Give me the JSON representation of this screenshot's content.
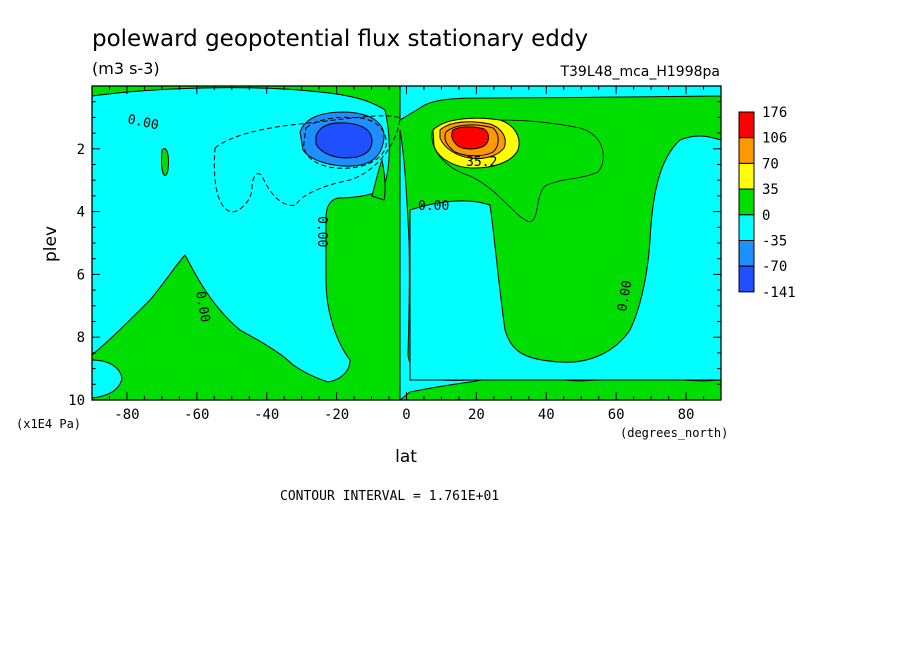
{
  "title": "poleward geopotential flux stationary eddy",
  "units": "(m3 s-3)",
  "run_id": "T39L48_mca_H1998pa",
  "x_axis": {
    "label": "lat",
    "units": "(degrees_north)",
    "ticks": [
      "-80",
      "-60",
      "-40",
      "-20",
      "0",
      "20",
      "40",
      "60",
      "80"
    ]
  },
  "y_axis": {
    "label": "plev",
    "units": "(x1E4 Pa)",
    "ticks": [
      "2",
      "4",
      "6",
      "8",
      "10"
    ]
  },
  "footer": "CONTOUR INTERVAL = 1.761E+01",
  "colorbar": {
    "labels": [
      "176",
      "106",
      "70",
      "35",
      "0",
      "-35",
      "-70",
      "-141"
    ],
    "colors": [
      "#ff0000",
      "#ff9900",
      "#ffff00",
      "#00dd00",
      "#00ffff",
      "#1e8fff",
      "#1e50ff"
    ]
  },
  "contour_labels": [
    "0.00",
    "0.00",
    "0.00",
    "0.00",
    "0.00",
    "35.2"
  ],
  "chart_data": {
    "type": "heatmap",
    "title": "poleward geopotential flux stationary eddy",
    "units": "(m3 s-3)",
    "xlabel": "lat",
    "ylabel": "plev",
    "xlim": [
      -90,
      90
    ],
    "ylim": [
      10,
      0
    ],
    "contour_interval": 17.61,
    "levels": [
      -141,
      -70,
      -35,
      0,
      35,
      70,
      106,
      176
    ],
    "features": [
      {
        "name": "negative core",
        "lat": -20,
        "plev": 1.8,
        "value": -141
      },
      {
        "name": "positive core",
        "lat": 18,
        "plev": 1.8,
        "value": 176
      }
    ]
  }
}
